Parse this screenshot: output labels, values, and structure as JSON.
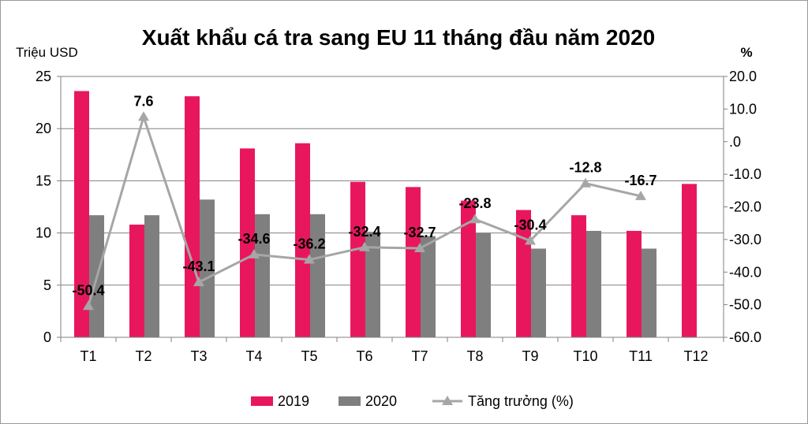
{
  "chart_data": {
    "type": "bar",
    "title": "Xuất khẩu cá tra sang EU 11 tháng đầu năm 2020",
    "ylabel": "Triệu USD",
    "y2label": "%",
    "categories": [
      "T1",
      "T2",
      "T3",
      "T4",
      "T5",
      "T6",
      "T7",
      "T8",
      "T9",
      "T10",
      "T11",
      "T12"
    ],
    "ylim": [
      0,
      25
    ],
    "yticks": [
      "0",
      "5",
      "10",
      "15",
      "20",
      "25"
    ],
    "y2lim": [
      -60,
      20
    ],
    "y2ticks": [
      "-60.0",
      "-50.0",
      "-40.0",
      "-30.0",
      "-20.0",
      "-10.0",
      ".0",
      "10.0",
      "20.0"
    ],
    "grid": true,
    "legend_position": "bottom",
    "series": [
      {
        "name": "2019",
        "type": "bar",
        "color": "#e8175d",
        "values": [
          23.6,
          10.8,
          23.1,
          18.1,
          18.6,
          14.9,
          14.4,
          13.1,
          12.2,
          11.7,
          10.2,
          14.7
        ]
      },
      {
        "name": "2020",
        "type": "bar",
        "color": "#7f7f7f",
        "values": [
          11.7,
          11.7,
          13.2,
          11.8,
          11.8,
          10.1,
          9.7,
          10.0,
          8.5,
          10.2,
          8.5,
          null
        ]
      },
      {
        "name": "Tăng trưởng (%)",
        "type": "line",
        "axis": "right",
        "color": "#a6a6a6",
        "values": [
          -50.4,
          7.6,
          -43.1,
          -34.6,
          -36.2,
          -32.4,
          -32.7,
          -23.8,
          -30.4,
          -12.8,
          -16.7,
          null
        ],
        "labels": [
          "-50.4",
          "7.6",
          "-43.1",
          "-34.6",
          "-36.2",
          "-32.4",
          "-32.7",
          "-23.8",
          "-30.4",
          "-12.8",
          "-16.7",
          ""
        ]
      }
    ]
  }
}
